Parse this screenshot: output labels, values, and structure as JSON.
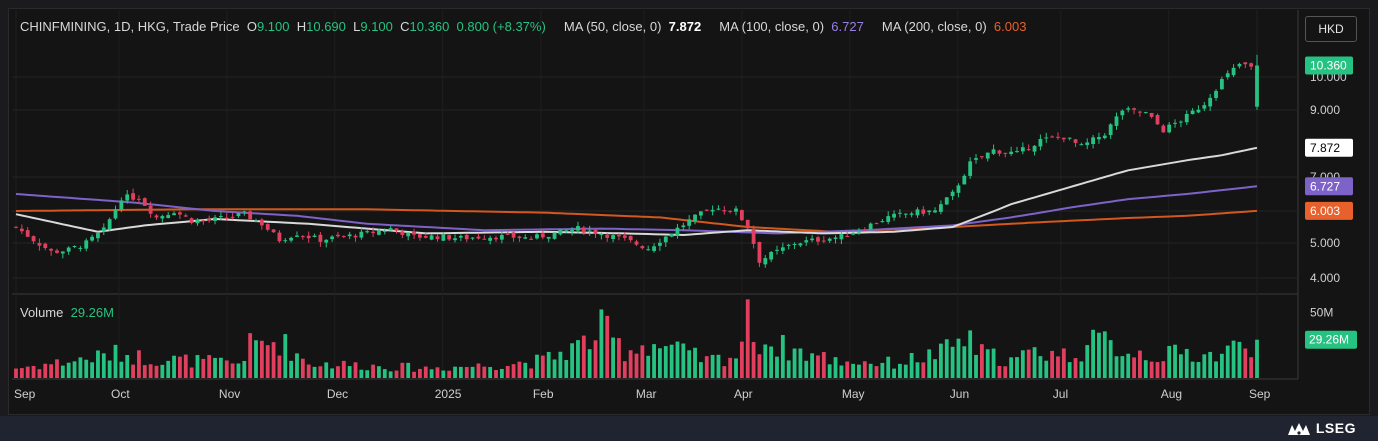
{
  "header": {
    "symbol": "CHINFMINING, 1D, HKG, Trade Price",
    "o_label": "O",
    "o_value": "9.100",
    "h_label": "H",
    "h_value": "10.690",
    "l_label": "L",
    "l_value": "9.100",
    "c_label": "C",
    "c_value": "10.360",
    "change": "0.800 (+8.37%)",
    "ma50_label": "MA (50, close, 0)",
    "ma50_value": "7.872",
    "ma100_label": "MA (100, close, 0)",
    "ma100_value": "6.727",
    "ma200_label": "MA (200, close, 0)",
    "ma200_value": "6.003"
  },
  "volume_header": {
    "label": "Volume",
    "value": "29.26M"
  },
  "currency": "HKD",
  "logo": {
    "text": "LSEG",
    "icon": "lseg-logo-icon"
  },
  "colors": {
    "up": "#26c281",
    "down": "#e0405e",
    "ma50": "#d9d9d9",
    "ma100": "#7d62c8",
    "ma200": "#d2581e",
    "bg": "#141414"
  },
  "chart_data": {
    "type": "candlestick",
    "title": "CHINFMINING, 1D, HKG, Trade Price",
    "x_labels": [
      "Sep",
      "Oct",
      "Nov",
      "Dec",
      "2025",
      "Feb",
      "Mar",
      "Apr",
      "May",
      "Jun",
      "Jul",
      "Aug",
      "Sep"
    ],
    "y_ticks": [
      "4.000",
      "5.000",
      "6.000",
      "7.000",
      "9.000",
      "10.000"
    ],
    "ylim": [
      3.6,
      11.0
    ],
    "price_labels": [
      {
        "value": "10.360",
        "color": "#26c281"
      },
      {
        "value": "7.872",
        "color": "#ffffff"
      },
      {
        "value": "6.727",
        "color": "#7d62c8"
      },
      {
        "value": "6.003",
        "color": "#e8602b"
      }
    ],
    "volume_ticks": [
      "50M"
    ],
    "volume_last_label": "29.26M",
    "volume_ylim": [
      0,
      55
    ],
    "close_anchors": [
      [
        0,
        5.5
      ],
      [
        3,
        5.1
      ],
      [
        6,
        4.75
      ],
      [
        9,
        4.8
      ],
      [
        12,
        5.0
      ],
      [
        15,
        5.4
      ],
      [
        18,
        6.4
      ],
      [
        21,
        6.4
      ],
      [
        24,
        5.8
      ],
      [
        27,
        6.0
      ],
      [
        30,
        5.7
      ],
      [
        33,
        5.7
      ],
      [
        36,
        5.8
      ],
      [
        39,
        5.9
      ],
      [
        42,
        5.6
      ],
      [
        45,
        5.1
      ],
      [
        48,
        5.3
      ],
      [
        52,
        5.1
      ],
      [
        56,
        5.2
      ],
      [
        60,
        5.3
      ],
      [
        64,
        5.45
      ],
      [
        68,
        5.2
      ],
      [
        72,
        5.2
      ],
      [
        76,
        5.15
      ],
      [
        80,
        5.2
      ],
      [
        84,
        5.2
      ],
      [
        88,
        5.15
      ],
      [
        92,
        5.3
      ],
      [
        96,
        5.45
      ],
      [
        100,
        5.3
      ],
      [
        104,
        5.1
      ],
      [
        108,
        4.85
      ],
      [
        111,
        5.2
      ],
      [
        115,
        5.7
      ],
      [
        119,
        6.1
      ],
      [
        123,
        6.0
      ],
      [
        125,
        5.5
      ],
      [
        127,
        4.5
      ],
      [
        130,
        4.75
      ],
      [
        133,
        5.0
      ],
      [
        137,
        5.1
      ],
      [
        141,
        5.2
      ],
      [
        145,
        5.5
      ],
      [
        149,
        5.8
      ],
      [
        153,
        5.95
      ],
      [
        157,
        6.0
      ],
      [
        160,
        6.5
      ],
      [
        163,
        7.4
      ],
      [
        167,
        7.8
      ],
      [
        171,
        7.7
      ],
      [
        175,
        8.1
      ],
      [
        179,
        8.2
      ],
      [
        182,
        7.9
      ],
      [
        186,
        8.3
      ],
      [
        189,
        9.0
      ],
      [
        193,
        8.9
      ],
      [
        196,
        8.4
      ],
      [
        200,
        8.8
      ],
      [
        203,
        9.2
      ],
      [
        206,
        9.9
      ],
      [
        209,
        10.4
      ],
      [
        211,
        10.3
      ],
      [
        212,
        10.36
      ]
    ],
    "volume_anchors": [
      [
        0,
        8
      ],
      [
        10,
        14
      ],
      [
        18,
        20
      ],
      [
        22,
        16
      ],
      [
        30,
        14
      ],
      [
        38,
        12
      ],
      [
        40,
        26
      ],
      [
        45,
        30
      ],
      [
        50,
        12
      ],
      [
        60,
        10
      ],
      [
        70,
        8
      ],
      [
        80,
        10
      ],
      [
        90,
        14
      ],
      [
        98,
        30
      ],
      [
        100,
        40
      ],
      [
        104,
        22
      ],
      [
        108,
        28
      ],
      [
        112,
        24
      ],
      [
        118,
        14
      ],
      [
        123,
        18
      ],
      [
        125,
        46
      ],
      [
        127,
        30
      ],
      [
        130,
        26
      ],
      [
        135,
        20
      ],
      [
        140,
        14
      ],
      [
        150,
        12
      ],
      [
        158,
        20
      ],
      [
        162,
        32
      ],
      [
        165,
        20
      ],
      [
        170,
        14
      ],
      [
        175,
        22
      ],
      [
        180,
        18
      ],
      [
        185,
        30
      ],
      [
        190,
        22
      ],
      [
        195,
        18
      ],
      [
        200,
        20
      ],
      [
        205,
        18
      ],
      [
        209,
        26
      ],
      [
        212,
        29.26
      ]
    ],
    "ma_anchors": {
      "ma50": [
        [
          0,
          5.9
        ],
        [
          14,
          5.35
        ],
        [
          22,
          5.55
        ],
        [
          34,
          5.75
        ],
        [
          50,
          5.6
        ],
        [
          70,
          5.3
        ],
        [
          90,
          5.35
        ],
        [
          104,
          5.3
        ],
        [
          114,
          5.25
        ],
        [
          125,
          5.4
        ],
        [
          138,
          5.3
        ],
        [
          150,
          5.35
        ],
        [
          160,
          5.5
        ],
        [
          170,
          6.2
        ],
        [
          180,
          6.7
        ],
        [
          190,
          7.2
        ],
        [
          200,
          7.5
        ],
        [
          206,
          7.65
        ],
        [
          212,
          7.872
        ]
      ],
      "ma100": [
        [
          0,
          6.5
        ],
        [
          20,
          6.25
        ],
        [
          34,
          6.0
        ],
        [
          48,
          5.85
        ],
        [
          60,
          5.6
        ],
        [
          80,
          5.4
        ],
        [
          100,
          5.45
        ],
        [
          114,
          5.4
        ],
        [
          130,
          5.3
        ],
        [
          145,
          5.4
        ],
        [
          160,
          5.55
        ],
        [
          170,
          5.8
        ],
        [
          180,
          6.1
        ],
        [
          190,
          6.35
        ],
        [
          200,
          6.5
        ],
        [
          212,
          6.727
        ]
      ],
      "ma200": [
        [
          0,
          6.0
        ],
        [
          30,
          6.05
        ],
        [
          60,
          6.05
        ],
        [
          90,
          5.95
        ],
        [
          110,
          5.8
        ],
        [
          125,
          5.5
        ],
        [
          140,
          5.35
        ],
        [
          160,
          5.5
        ],
        [
          175,
          5.65
        ],
        [
          190,
          5.78
        ],
        [
          200,
          5.85
        ],
        [
          212,
          6.003
        ]
      ]
    },
    "session_count": 213
  }
}
